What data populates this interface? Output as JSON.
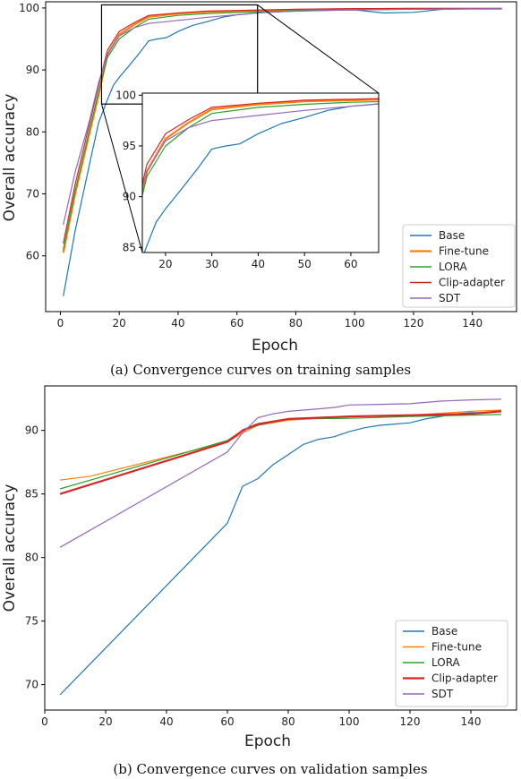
{
  "chart_data": [
    {
      "type": "line",
      "title": "",
      "caption": "(a) Convergence curves on training samples",
      "xlabel": "Epoch",
      "ylabel": "Overall accuracy",
      "xlim": [
        -5,
        155
      ],
      "ylim": [
        51,
        101
      ],
      "xticks": [
        0,
        20,
        40,
        60,
        80,
        100,
        120,
        140
      ],
      "yticks": [
        60,
        70,
        80,
        90,
        100
      ],
      "legend": "lower-right",
      "grid": false,
      "series": [
        {
          "name": "Base",
          "color": "#1f77b4",
          "thick": false,
          "x": [
            1,
            5,
            10,
            13,
            16,
            18,
            20,
            23,
            27,
            30,
            33,
            36,
            40,
            45,
            50,
            55,
            60,
            65,
            70,
            80,
            90,
            100,
            110,
            120,
            130,
            140,
            150
          ],
          "y": [
            53.5,
            64,
            75,
            81.5,
            85.2,
            87.5,
            88.8,
            90.5,
            92.8,
            94.7,
            95,
            95.2,
            96.2,
            97.2,
            97.8,
            98.5,
            98.9,
            99.1,
            99.3,
            99.5,
            99.6,
            99.7,
            99.2,
            99.3,
            99.8,
            99.9,
            99.9
          ]
        },
        {
          "name": "Fine-tune",
          "color": "#ff7f0e",
          "thick": true,
          "x": [
            1,
            5,
            10,
            13,
            16,
            20,
            25,
            30,
            40,
            50,
            60,
            70,
            80,
            100,
            120,
            150
          ],
          "y": [
            60.5,
            70,
            80,
            86,
            92.5,
            95.7,
            97.3,
            98.6,
            99.1,
            99.4,
            99.5,
            99.6,
            99.7,
            99.8,
            99.9,
            99.9
          ]
        },
        {
          "name": "LORA",
          "color": "#2ca02c",
          "thick": false,
          "x": [
            1,
            5,
            10,
            13,
            16,
            20,
            25,
            30,
            40,
            50,
            60,
            70,
            80,
            100,
            120,
            150
          ],
          "y": [
            61,
            70.5,
            80.5,
            86.5,
            92,
            95,
            96.8,
            98.2,
            98.8,
            99.1,
            99.3,
            99.4,
            99.6,
            99.7,
            99.8,
            99.9
          ]
        },
        {
          "name": "Clip-adapter",
          "color": "#d62728",
          "thick": false,
          "x": [
            1,
            5,
            10,
            13,
            16,
            20,
            25,
            30,
            40,
            50,
            60,
            70,
            80,
            100,
            120,
            150
          ],
          "y": [
            62,
            71.5,
            81.5,
            87.5,
            93.2,
            96.2,
            97.6,
            98.8,
            99.2,
            99.5,
            99.6,
            99.7,
            99.8,
            99.9,
            99.9,
            99.9
          ]
        },
        {
          "name": "SDT",
          "color": "#9467bd",
          "thick": false,
          "x": [
            1,
            5,
            10,
            13,
            16,
            20,
            25,
            30,
            40,
            50,
            60,
            70,
            80,
            100,
            120,
            150
          ],
          "y": [
            65,
            73.5,
            82,
            88,
            92.5,
            95.5,
            96.8,
            97.5,
            98,
            98.5,
            98.9,
            99.3,
            99.5,
            99.7,
            99.8,
            99.9
          ]
        }
      ],
      "inset": {
        "xlim": [
          15,
          66
        ],
        "ylim": [
          84.5,
          100.2
        ],
        "xticks": [
          20,
          30,
          40,
          50,
          60
        ],
        "yticks": [
          85,
          90,
          95,
          100
        ],
        "zoom_region": {
          "x": [
            14,
            67
          ],
          "y": [
            84.5,
            100.5
          ]
        }
      }
    },
    {
      "type": "line",
      "title": "",
      "caption": "(b) Convergence curves on validation samples",
      "xlabel": "Epoch",
      "ylabel": "Overall accuracy",
      "xlim": [
        0,
        155
      ],
      "ylim": [
        68,
        93.5
      ],
      "xticks": [
        0,
        20,
        40,
        60,
        80,
        100,
        120,
        140
      ],
      "yticks": [
        70,
        75,
        80,
        85,
        90
      ],
      "legend": "lower-right",
      "grid": false,
      "series": [
        {
          "name": "Base",
          "color": "#1f77b4",
          "thick": false,
          "x": [
            5,
            60,
            65,
            70,
            75,
            80,
            85,
            90,
            95,
            100,
            105,
            110,
            115,
            120,
            125,
            130,
            135,
            140,
            145,
            150
          ],
          "y": [
            69.2,
            82.7,
            85.6,
            86.2,
            87.3,
            88.1,
            88.9,
            89.3,
            89.5,
            89.9,
            90.2,
            90.4,
            90.5,
            90.6,
            90.9,
            91.1,
            91.3,
            91.4,
            91.4,
            91.5
          ]
        },
        {
          "name": "Fine-tune",
          "color": "#ff7f0e",
          "thick": false,
          "x": [
            5,
            15,
            60,
            65,
            70,
            80,
            100,
            120,
            140,
            150
          ],
          "y": [
            86.1,
            86.4,
            89.1,
            89.8,
            90.4,
            90.8,
            91.1,
            91.2,
            91.5,
            91.6
          ]
        },
        {
          "name": "LORA",
          "color": "#2ca02c",
          "thick": false,
          "x": [
            5,
            60,
            65,
            70,
            80,
            100,
            120,
            140,
            150
          ],
          "y": [
            85.4,
            89.2,
            90,
            90.4,
            90.9,
            90.95,
            91.1,
            91.2,
            91.25
          ]
        },
        {
          "name": "Clip-adapter",
          "color": "#d62728",
          "thick": true,
          "x": [
            5,
            60,
            65,
            70,
            80,
            100,
            120,
            140,
            150
          ],
          "y": [
            85,
            89.1,
            90,
            90.5,
            90.9,
            91.1,
            91.2,
            91.3,
            91.5
          ]
        },
        {
          "name": "SDT",
          "color": "#9467bd",
          "thick": false,
          "x": [
            5,
            60,
            65,
            70,
            75,
            80,
            85,
            90,
            95,
            100,
            110,
            120,
            130,
            140,
            150
          ],
          "y": [
            80.8,
            88.3,
            89.8,
            91,
            91.3,
            91.5,
            91.6,
            91.7,
            91.8,
            92.0,
            92.05,
            92.1,
            92.3,
            92.4,
            92.45
          ]
        }
      ]
    }
  ]
}
